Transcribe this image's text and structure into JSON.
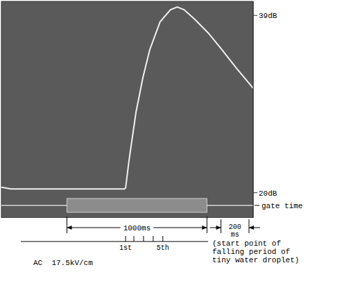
{
  "chart_data": {
    "type": "line",
    "x": [
      -468,
      -400,
      -200,
      0,
      200,
      410,
      419,
      443,
      493,
      542,
      591,
      665,
      739,
      788,
      837,
      911,
      1010,
      1108,
      1207,
      1330
    ],
    "values": [
      20.6,
      20.4,
      20.4,
      20.4,
      20.4,
      20.4,
      20.5,
      23.4,
      28.6,
      32.3,
      35.3,
      38.3,
      39.6,
      39.9,
      39.6,
      38.6,
      37.1,
      35.3,
      33.4,
      31.2
    ],
    "color": "#f0f0f0",
    "xlim": [
      -468,
      1330
    ],
    "ylim": [
      17.3,
      40.5
    ],
    "yticks": [
      {
        "value": 20,
        "label": "20dB"
      },
      {
        "value": 39,
        "label": "39dB"
      }
    ],
    "tick_labels": "y",
    "gate": {
      "label": "gate time",
      "start": 0,
      "end": 1000,
      "span_label": "1000ms"
    },
    "scale_bar": {
      "start": 1100,
      "end": 1300,
      "label": [
        "200",
        "ms"
      ]
    },
    "droplet_marks": {
      "x": [
        419,
        478,
        547,
        616,
        685
      ],
      "labels": [
        "1st",
        null,
        null,
        null,
        "5th"
      ]
    },
    "condition": "AC  17.5kV/cm",
    "note": [
      "(start point of",
      "falling period of",
      "tiny water droplet)"
    ]
  }
}
